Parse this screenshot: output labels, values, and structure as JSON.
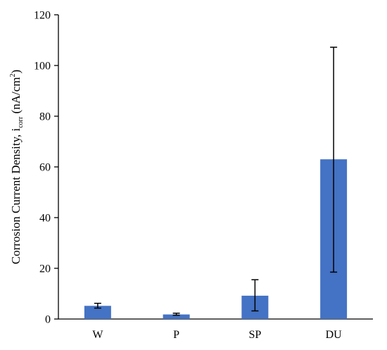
{
  "chart_data": {
    "type": "bar",
    "categories": [
      "W",
      "P",
      "SP",
      "DU"
    ],
    "values": [
      5.2,
      1.8,
      9.2,
      63.0
    ],
    "error_low": [
      4.3,
      1.5,
      3.2,
      18.5
    ],
    "error_high": [
      6.2,
      2.3,
      15.5,
      107.2
    ],
    "title": "",
    "xlabel": "",
    "ylabel": {
      "prefix": "Corrosion Current Density,  i",
      "sub": "corr",
      "middle": " (nA/cm",
      "sup": "2",
      "suffix": ")"
    },
    "ylim": [
      0,
      120
    ],
    "yticks": [
      "0",
      "20",
      "40",
      "60",
      "80",
      "100",
      "120"
    ],
    "grid": false,
    "legend": "none",
    "bar_color": "#4472C4",
    "error_bar_color": "#000000"
  }
}
